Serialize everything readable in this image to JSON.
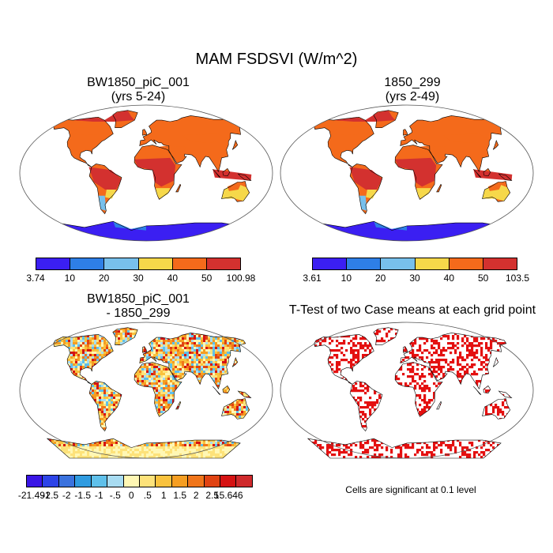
{
  "title": "MAM FSDSVI (W/m^2)",
  "panels": [
    {
      "id": "case",
      "title_line1": "BW1850_piC_001",
      "title_line2": "(yrs 5-24)",
      "colorbar": {
        "colors": [
          "#3b1ff2",
          "#2e7fe6",
          "#78c0ec",
          "#f6d84a",
          "#f46a1b",
          "#d3312f"
        ],
        "labels": [
          "3.74",
          "10",
          "20",
          "30",
          "40",
          "50",
          "100.98"
        ]
      }
    },
    {
      "id": "control",
      "title_line1": "1850_299",
      "title_line2": "(yrs 2-49)",
      "colorbar": {
        "colors": [
          "#3b1ff2",
          "#2e7fe6",
          "#78c0ec",
          "#f6d84a",
          "#f46a1b",
          "#d3312f"
        ],
        "labels": [
          "3.61",
          "10",
          "20",
          "30",
          "40",
          "50",
          "103.5"
        ]
      }
    },
    {
      "id": "difference",
      "title_line1": "BW1850_piC_001",
      "title_line2": "- 1850_299",
      "colorbar": {
        "colors": [
          "#3a16e6",
          "#2d44e8",
          "#3a72de",
          "#2f9be0",
          "#5fc0ea",
          "#a8dcf2",
          "#fff7b4",
          "#fde27a",
          "#f9c23d",
          "#f59e22",
          "#f0751a",
          "#e04312",
          "#d51313",
          "#cf2a2c"
        ],
        "labels": [
          "-21.491",
          "-2.5",
          "-2",
          "-1.5",
          "-1",
          "-.5",
          "0",
          ".5",
          "1",
          "1.5",
          "2",
          "2.5",
          "15.646"
        ]
      }
    },
    {
      "id": "ttest",
      "title_line1": "T-Test of two Case means at each grid point",
      "note": "Cells are significant at 0.1 level"
    }
  ],
  "colors": {
    "ocean": "#ffffff",
    "outline": "#000000",
    "significant": "#e41010"
  }
}
